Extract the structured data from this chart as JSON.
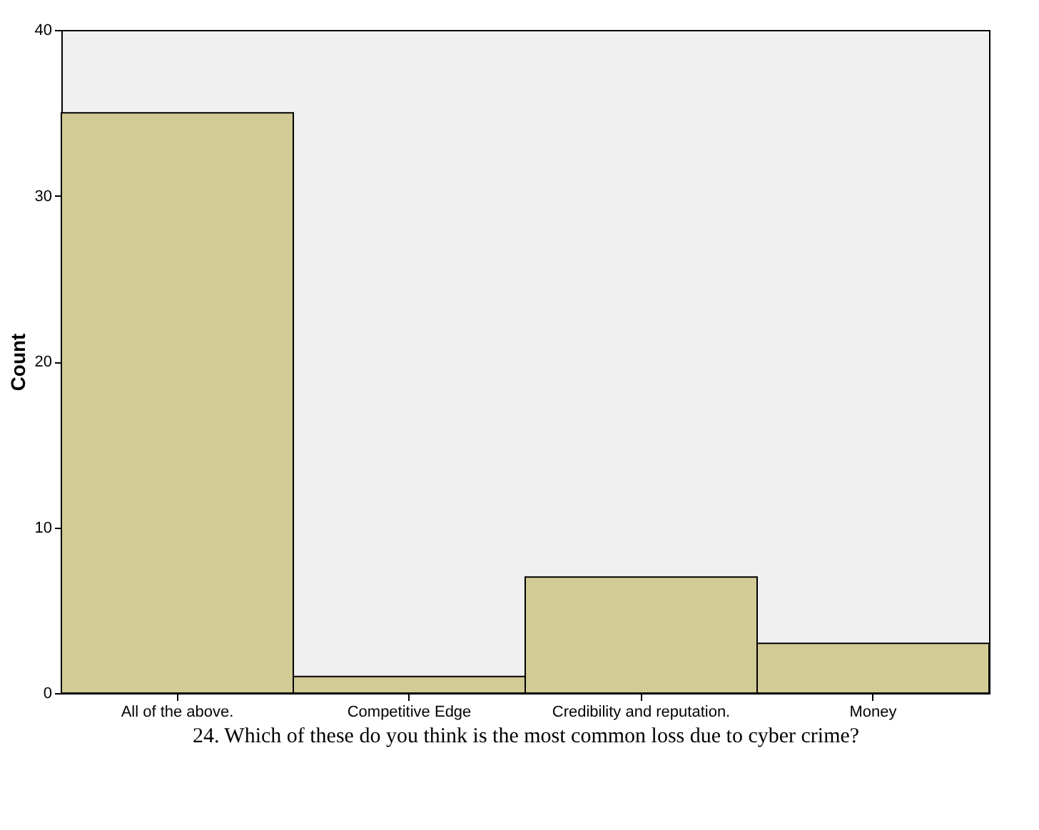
{
  "chart_data": {
    "type": "bar",
    "categories": [
      "All of the above.",
      "Competitive Edge",
      "Credibility and reputation.",
      "Money"
    ],
    "values": [
      35,
      1,
      7,
      3
    ],
    "color": "#d2cb96",
    "ylabel": "Count",
    "xlabel": "24. Which of these do you think is the most common loss due to cyber crime?",
    "ylim": [
      0,
      40
    ],
    "yticks": [
      0,
      10,
      20,
      30,
      40
    ],
    "grid": false
  }
}
